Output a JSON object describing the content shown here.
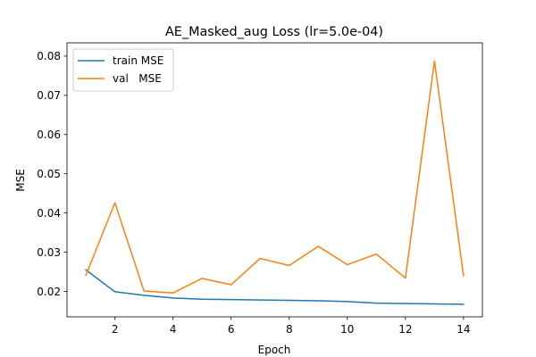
{
  "chart_data": {
    "type": "line",
    "title": "AE_Masked_aug Loss (lr=5.0e-04)",
    "xlabel": "Epoch",
    "ylabel": "MSE",
    "xlim": [
      0.35,
      14.65
    ],
    "ylim": [
      0.0135,
      0.0834
    ],
    "x_ticks": [
      2,
      4,
      6,
      8,
      10,
      12,
      14
    ],
    "y_ticks": [
      0.02,
      0.03,
      0.04,
      0.05,
      0.06,
      0.07,
      0.08
    ],
    "y_tick_labels": [
      "0.02",
      "0.03",
      "0.04",
      "0.05",
      "0.06",
      "0.07",
      "0.08"
    ],
    "grid": false,
    "legend_position": "top-left",
    "x": [
      1,
      2,
      3,
      4,
      5,
      6,
      7,
      8,
      9,
      10,
      11,
      12,
      13,
      14
    ],
    "series": [
      {
        "name": "train MSE",
        "color": "#1f77b4",
        "values": [
          0.0255,
          0.0199,
          0.019,
          0.0183,
          0.018,
          0.0179,
          0.0178,
          0.0177,
          0.0176,
          0.0174,
          0.017,
          0.0169,
          0.0168,
          0.0167
        ]
      },
      {
        "name": "val   MSE",
        "color": "#ff7f0e",
        "values": [
          0.0241,
          0.0426,
          0.0201,
          0.0196,
          0.0233,
          0.0217,
          0.0284,
          0.0266,
          0.0315,
          0.0268,
          0.0295,
          0.0234,
          0.0788,
          0.024
        ]
      }
    ]
  }
}
